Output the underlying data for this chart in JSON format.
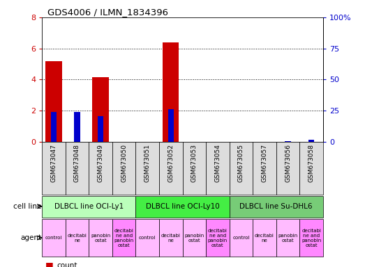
{
  "title": "GDS4006 / ILMN_1834396",
  "samples": [
    "GSM673047",
    "GSM673048",
    "GSM673049",
    "GSM673050",
    "GSM673051",
    "GSM673052",
    "GSM673053",
    "GSM673054",
    "GSM673055",
    "GSM673057",
    "GSM673056",
    "GSM673058"
  ],
  "counts": [
    5.2,
    0,
    4.15,
    0,
    0,
    6.4,
    0,
    0,
    0,
    0,
    0,
    0
  ],
  "percentiles_scaled": [
    1.9,
    1.9,
    1.65,
    0,
    0,
    2.1,
    0,
    0,
    0,
    0,
    0.05,
    0.12
  ],
  "ylim_left": [
    0,
    8
  ],
  "ylim_right": [
    0,
    8
  ],
  "yticks_left": [
    0,
    2,
    4,
    6,
    8
  ],
  "ytick_labels_left": [
    "0",
    "2",
    "4",
    "6",
    "8"
  ],
  "yticks_right": [
    0,
    2,
    4,
    6,
    8
  ],
  "ytick_labels_right": [
    "0",
    "25",
    "50",
    "75",
    "100%"
  ],
  "bar_color": "#cc0000",
  "percentile_color": "#0000cc",
  "cell_lines": [
    {
      "label": "DLBCL line OCI-Ly1",
      "start": 0,
      "end": 4,
      "color": "#bbffbb"
    },
    {
      "label": "DLBCL line OCI-Ly10",
      "start": 4,
      "end": 8,
      "color": "#44ee44"
    },
    {
      "label": "DLBCL line Su-DHL6",
      "start": 8,
      "end": 12,
      "color": "#77cc77"
    }
  ],
  "agents": [
    {
      "label": "control",
      "col": 0,
      "color": "#ffbbff"
    },
    {
      "label": "decitabi\nne",
      "col": 1,
      "color": "#ffbbff"
    },
    {
      "label": "panobin\nostat",
      "col": 2,
      "color": "#ffbbff"
    },
    {
      "label": "decitabi\nne and\npanobin\nostat",
      "col": 3,
      "color": "#ff88ff"
    },
    {
      "label": "control",
      "col": 4,
      "color": "#ffbbff"
    },
    {
      "label": "decitabi\nne",
      "col": 5,
      "color": "#ffbbff"
    },
    {
      "label": "panobin\nostat",
      "col": 6,
      "color": "#ffbbff"
    },
    {
      "label": "decitabi\nne and\npanobin\nostat",
      "col": 7,
      "color": "#ff88ff"
    },
    {
      "label": "control",
      "col": 8,
      "color": "#ffbbff"
    },
    {
      "label": "decitabi\nne",
      "col": 9,
      "color": "#ffbbff"
    },
    {
      "label": "panobin\nostat",
      "col": 10,
      "color": "#ffbbff"
    },
    {
      "label": "decitabi\nne and\npanobin\nostat",
      "col": 11,
      "color": "#ff88ff"
    }
  ],
  "bg_color": "#ffffff",
  "tick_color_left": "#cc0000",
  "tick_color_right": "#0000cc",
  "sample_bg_color": "#dddddd"
}
